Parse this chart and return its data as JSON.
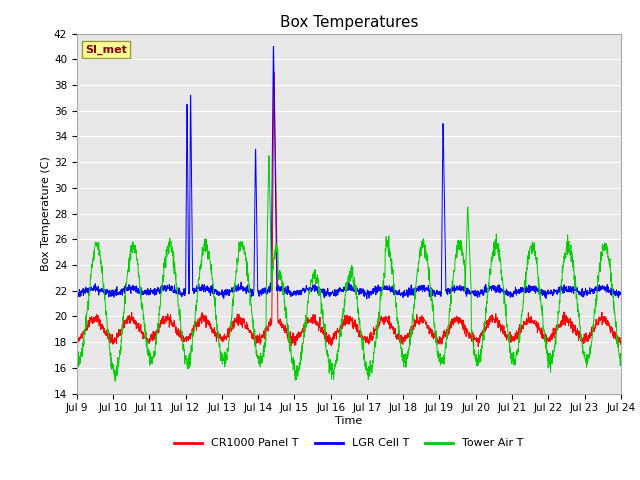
{
  "title": "Box Temperatures",
  "xlabel": "Time",
  "ylabel": "Box Temperature (C)",
  "ylim": [
    14,
    42
  ],
  "yticks": [
    14,
    16,
    18,
    20,
    22,
    24,
    26,
    28,
    30,
    32,
    34,
    36,
    38,
    40,
    42
  ],
  "xtick_labels": [
    "Jul 9",
    "Jul 10",
    "Jul 11",
    "Jul 12",
    "Jul 13",
    "Jul 14",
    "Jul 15",
    "Jul 16",
    "Jul 17",
    "Jul 18",
    "Jul 19",
    "Jul 20",
    "Jul 21",
    "Jul 22",
    "Jul 23",
    "Jul 24"
  ],
  "legend_labels": [
    "CR1000 Panel T",
    "LGR Cell T",
    "Tower Air T"
  ],
  "line_colors": [
    "#ff0000",
    "#0000ff",
    "#00cc00"
  ],
  "watermark_text": "SI_met",
  "watermark_bg": "#ffff99",
  "watermark_fg": "#880000",
  "plot_bg_color": "#e8e8e8",
  "grid_color": "#ffffff",
  "title_fontsize": 11,
  "axis_fontsize": 8,
  "tick_fontsize": 7.5,
  "legend_fontsize": 8
}
